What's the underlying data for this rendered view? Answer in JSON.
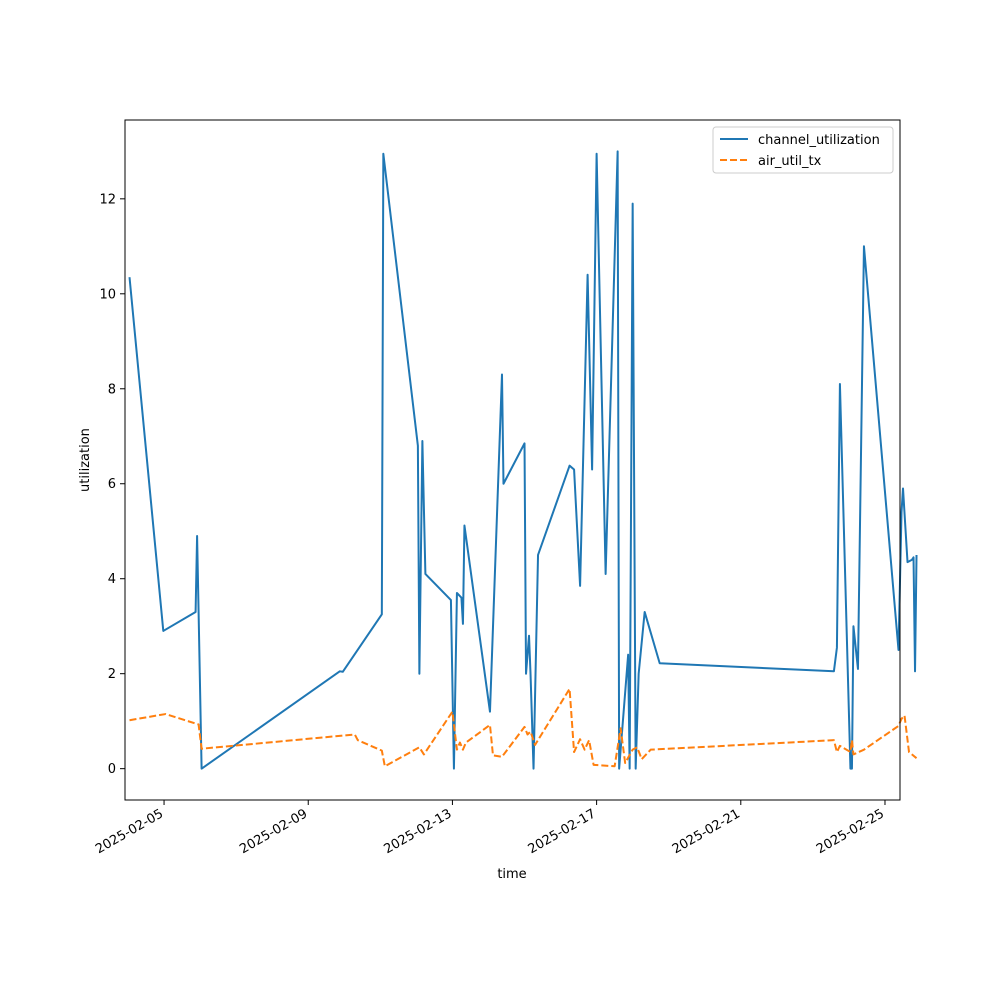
{
  "chart_data": {
    "type": "line",
    "xlabel": "time",
    "ylabel": "utilization",
    "ylim": [
      -0.66,
      13.66
    ],
    "xlim": [
      "2025-02-03 22:00",
      "2025-02-25 10:00"
    ],
    "x_ticks": [
      "2025-02-05",
      "2025-02-09",
      "2025-02-13",
      "2025-02-17",
      "2025-02-21",
      "2025-02-25"
    ],
    "y_ticks": [
      0,
      2,
      4,
      6,
      8,
      10,
      12
    ],
    "grid": false,
    "legend_position": "top-right",
    "series": [
      {
        "name": "channel_utilization",
        "color": "#1f77b4",
        "style": "solid",
        "points": [
          [
            "2025-02-04 01:00",
            10.35
          ],
          [
            "2025-02-04 23:30",
            2.9
          ],
          [
            "2025-02-05 21:00",
            3.3
          ],
          [
            "2025-02-05 22:00",
            4.9
          ],
          [
            "2025-02-05 23:00",
            3.3
          ],
          [
            "2025-02-06 01:00",
            0.0
          ],
          [
            "2025-02-09 21:00",
            2.05
          ],
          [
            "2025-02-09 23:00",
            2.04
          ],
          [
            "2025-02-11 01:00",
            3.25
          ],
          [
            "2025-02-11 02:00",
            12.95
          ],
          [
            "2025-02-12 01:00",
            6.8
          ],
          [
            "2025-02-12 02:00",
            2.0
          ],
          [
            "2025-02-12 04:00",
            6.9
          ],
          [
            "2025-02-12 06:00",
            4.1
          ],
          [
            "2025-02-12 23:00",
            3.55
          ],
          [
            "2025-02-13 01:00",
            0.0
          ],
          [
            "2025-02-13 03:00",
            3.7
          ],
          [
            "2025-02-13 06:00",
            3.6
          ],
          [
            "2025-02-13 07:00",
            3.05
          ],
          [
            "2025-02-13 08:00",
            5.12
          ],
          [
            "2025-02-14 01:00",
            1.2
          ],
          [
            "2025-02-14 09:00",
            8.3
          ],
          [
            "2025-02-14 10:00",
            6.0
          ],
          [
            "2025-02-15 00:00",
            6.85
          ],
          [
            "2025-02-15 01:00",
            2.0
          ],
          [
            "2025-02-15 03:00",
            2.8
          ],
          [
            "2025-02-15 04:00",
            2.0
          ],
          [
            "2025-02-15 06:00",
            0.0
          ],
          [
            "2025-02-15 09:00",
            4.5
          ],
          [
            "2025-02-16 06:00",
            6.38
          ],
          [
            "2025-02-16 09:00",
            6.3
          ],
          [
            "2025-02-16 13:00",
            3.85
          ],
          [
            "2025-02-16 18:00",
            10.4
          ],
          [
            "2025-02-16 21:00",
            6.3
          ],
          [
            "2025-02-17 00:00",
            12.95
          ],
          [
            "2025-02-17 06:00",
            4.1
          ],
          [
            "2025-02-17 14:00",
            13.0
          ],
          [
            "2025-02-17 15:00",
            0.0
          ],
          [
            "2025-02-17 21:00",
            2.4
          ],
          [
            "2025-02-17 22:00",
            0.0
          ],
          [
            "2025-02-18 00:00",
            11.9
          ],
          [
            "2025-02-18 02:00",
            0.0
          ],
          [
            "2025-02-18 04:00",
            2.0
          ],
          [
            "2025-02-18 08:00",
            3.3
          ],
          [
            "2025-02-18 18:00",
            2.22
          ],
          [
            "2025-02-23 14:00",
            2.05
          ],
          [
            "2025-02-23 16:00",
            2.55
          ],
          [
            "2025-02-23 18:00",
            8.1
          ],
          [
            "2025-02-24 01:00",
            0.0
          ],
          [
            "2025-02-24 02:00",
            0.0
          ],
          [
            "2025-02-24 03:00",
            3.0
          ],
          [
            "2025-02-24 06:00",
            2.1
          ],
          [
            "2025-02-24 10:00",
            11.0
          ],
          [
            "2025-02-25 09:00",
            2.5
          ],
          [
            "2025-02-25 11:00",
            5.4
          ],
          [
            "2025-02-25 12:00",
            5.9
          ],
          [
            "2025-02-25 15:00",
            4.35
          ],
          [
            "2025-02-25 18:00",
            4.4
          ],
          [
            "2025-02-25 19:00",
            4.45
          ],
          [
            "2025-02-25 20:00",
            2.05
          ],
          [
            "2025-02-25 21:00",
            4.5
          ]
        ]
      },
      {
        "name": "air_util_tx",
        "color": "#ff7f0e",
        "style": "dashed",
        "points": [
          [
            "2025-02-04 01:00",
            1.02
          ],
          [
            "2025-02-05 01:00",
            1.15
          ],
          [
            "2025-02-05 23:00",
            0.93
          ],
          [
            "2025-02-06 01:00",
            0.42
          ],
          [
            "2025-02-10 07:00",
            0.72
          ],
          [
            "2025-02-10 09:00",
            0.6
          ],
          [
            "2025-02-11 01:00",
            0.38
          ],
          [
            "2025-02-11 03:00",
            0.05
          ],
          [
            "2025-02-12 02:00",
            0.45
          ],
          [
            "2025-02-12 05:00",
            0.3
          ],
          [
            "2025-02-13 00:00",
            1.2
          ],
          [
            "2025-02-13 03:00",
            0.4
          ],
          [
            "2025-02-13 05:00",
            0.55
          ],
          [
            "2025-02-13 07:00",
            0.4
          ],
          [
            "2025-02-13 09:00",
            0.55
          ],
          [
            "2025-02-14 01:00",
            0.92
          ],
          [
            "2025-02-14 03:00",
            0.28
          ],
          [
            "2025-02-14 09:00",
            0.25
          ],
          [
            "2025-02-15 00:00",
            0.88
          ],
          [
            "2025-02-15 02:00",
            0.72
          ],
          [
            "2025-02-15 04:00",
            0.78
          ],
          [
            "2025-02-15 07:00",
            0.5
          ],
          [
            "2025-02-16 06:00",
            1.68
          ],
          [
            "2025-02-16 09:00",
            0.35
          ],
          [
            "2025-02-16 13:00",
            0.62
          ],
          [
            "2025-02-16 16:00",
            0.4
          ],
          [
            "2025-02-16 19:00",
            0.6
          ],
          [
            "2025-02-16 22:00",
            0.08
          ],
          [
            "2025-02-17 12:00",
            0.05
          ],
          [
            "2025-02-17 16:00",
            0.85
          ],
          [
            "2025-02-17 19:00",
            0.12
          ],
          [
            "2025-02-18 00:00",
            0.4
          ],
          [
            "2025-02-18 03:00",
            0.45
          ],
          [
            "2025-02-18 06:00",
            0.2
          ],
          [
            "2025-02-18 12:00",
            0.4
          ],
          [
            "2025-02-23 14:00",
            0.6
          ],
          [
            "2025-02-23 16:00",
            0.35
          ],
          [
            "2025-02-23 18:00",
            0.48
          ],
          [
            "2025-02-24 01:00",
            0.35
          ],
          [
            "2025-02-24 02:00",
            0.6
          ],
          [
            "2025-02-24 03:00",
            0.3
          ],
          [
            "2025-02-24 10:00",
            0.4
          ],
          [
            "2025-02-25 09:00",
            0.9
          ],
          [
            "2025-02-25 11:00",
            1.05
          ],
          [
            "2025-02-25 13:00",
            1.12
          ],
          [
            "2025-02-25 16:00",
            0.35
          ],
          [
            "2025-02-25 21:00",
            0.22
          ]
        ]
      }
    ]
  }
}
